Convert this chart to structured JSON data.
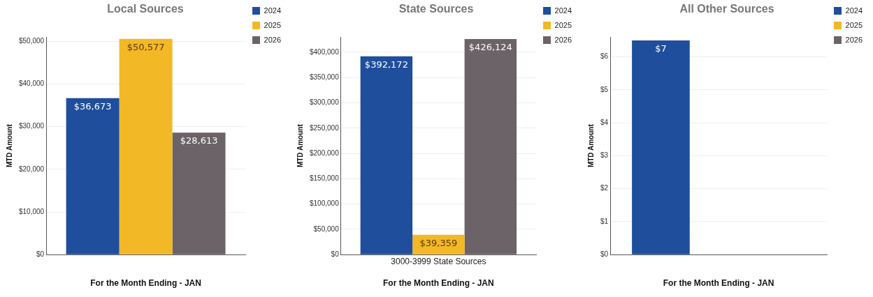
{
  "chart_data": [
    {
      "type": "bar",
      "title": "Local Sources",
      "xlabel": "For the Month Ending - JAN",
      "ylabel": "MTD Amount",
      "categories": [
        null
      ],
      "series": [
        {
          "name": "2024",
          "color": "#1f4e9c",
          "values": [
            36673
          ],
          "value_labels": [
            "$36,673"
          ]
        },
        {
          "name": "2025",
          "color": "#f3b826",
          "values": [
            50577
          ],
          "value_labels": [
            "$50,577"
          ]
        },
        {
          "name": "2026",
          "color": "#6b6367",
          "values": [
            28613
          ],
          "value_labels": [
            "$28,613"
          ]
        }
      ],
      "ylim": [
        0,
        51000
      ],
      "yticks": [
        {
          "value": 0,
          "label": "$0"
        },
        {
          "value": 10000,
          "label": "$10,000"
        },
        {
          "value": 20000,
          "label": "$20,000"
        },
        {
          "value": 30000,
          "label": "$30,000"
        },
        {
          "value": 40000,
          "label": "$40,000"
        },
        {
          "value": 50000,
          "label": "$50,000"
        }
      ],
      "grid": "y",
      "legend": "top right"
    },
    {
      "type": "bar",
      "title": "State Sources",
      "xlabel": "For the Month Ending - JAN",
      "ylabel": "MTD Amount",
      "categories": [
        "3000-3999 State Sources"
      ],
      "series": [
        {
          "name": "2024",
          "color": "#1f4e9c",
          "values": [
            392172
          ],
          "value_labels": [
            "$392,172"
          ]
        },
        {
          "name": "2025",
          "color": "#f3b826",
          "values": [
            39359
          ],
          "value_labels": [
            "$39,359"
          ]
        },
        {
          "name": "2026",
          "color": "#6b6367",
          "values": [
            426124
          ],
          "value_labels": [
            "$426,124"
          ]
        }
      ],
      "ylim": [
        0,
        430000
      ],
      "yticks": [
        {
          "value": 0,
          "label": "$0"
        },
        {
          "value": 50000,
          "label": "$50,000"
        },
        {
          "value": 100000,
          "label": "$100,000"
        },
        {
          "value": 150000,
          "label": "$150,000"
        },
        {
          "value": 200000,
          "label": "$200,000"
        },
        {
          "value": 250000,
          "label": "$250,000"
        },
        {
          "value": 300000,
          "label": "$300,000"
        },
        {
          "value": 350000,
          "label": "$350,000"
        },
        {
          "value": 400000,
          "label": "$400,000"
        }
      ],
      "grid": "y",
      "legend": "top right"
    },
    {
      "type": "bar",
      "title": "All Other Sources",
      "xlabel": "For the Month Ending - JAN",
      "ylabel": "MTD Amount",
      "categories": [
        null
      ],
      "series": [
        {
          "name": "2024",
          "color": "#1f4e9c",
          "values": [
            6.5
          ],
          "value_labels": [
            "$7"
          ]
        },
        {
          "name": "2025",
          "color": "#f3b826",
          "values": [
            null
          ],
          "value_labels": [
            null
          ]
        },
        {
          "name": "2026",
          "color": "#6b6367",
          "values": [
            null
          ],
          "value_labels": [
            null
          ]
        }
      ],
      "ylim": [
        0,
        6.6
      ],
      "yticks": [
        {
          "value": 0,
          "label": "$0"
        },
        {
          "value": 1,
          "label": "$1"
        },
        {
          "value": 2,
          "label": "$2"
        },
        {
          "value": 3,
          "label": "$3"
        },
        {
          "value": 4,
          "label": "$4"
        },
        {
          "value": 5,
          "label": "$5"
        },
        {
          "value": 6,
          "label": "$6"
        }
      ],
      "grid": "y",
      "legend": "top right"
    }
  ]
}
